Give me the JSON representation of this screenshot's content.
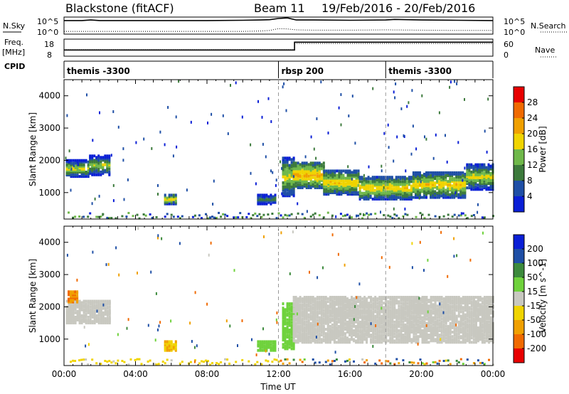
{
  "header": {
    "station": "Blackstone (fitACF)",
    "beam": "Beam 11",
    "daterange": "19/Feb/2016 - 20/Feb/2016"
  },
  "left_labels": {
    "nsky": "N.Sky",
    "freq": "Freq.",
    "mhz": "[MHz]",
    "cpid": "CPID"
  },
  "right_labels": {
    "nsearch": "N.Search",
    "nave": "Nave"
  },
  "small_ticks": {
    "noise_left_top": "10^5",
    "noise_left_bottom": "10^0",
    "noise_right_top": "10^5",
    "noise_right_bottom": "10^0",
    "freq_left_top": "18",
    "freq_left_bottom": "8",
    "nave_right_top": "60",
    "nave_right_bottom": "0"
  },
  "cpid_segments": [
    {
      "start_hour": 0,
      "label": "themis -3300"
    },
    {
      "start_hour": 12,
      "label": "rbsp 200"
    },
    {
      "start_hour": 18,
      "label": "themis -3300"
    }
  ],
  "colors": {
    "power": [
      "#0a1fd6",
      "#1f4fa6",
      "#3c7a3c",
      "#6fb84a",
      "#f0d400",
      "#f0a000",
      "#f06a00",
      "#e80000"
    ],
    "velocity": [
      "#e80000",
      "#f06a00",
      "#f0a000",
      "#f0d400",
      "#c8c8c0",
      "#6fd23c",
      "#3c8a3c",
      "#1f4fa6",
      "#0a1fd6"
    ],
    "ground_scatter": "#c8c8c0"
  },
  "chart_data": [
    {
      "type": "line",
      "title": "",
      "series": [
        {
          "name": "N.Sky",
          "x": [
            0,
            0.5,
            1,
            1.5,
            2,
            2.5,
            3,
            4,
            6,
            8,
            10,
            11,
            11.5,
            12,
            12.5,
            13,
            14,
            16,
            18,
            18.5,
            20,
            22,
            24
          ],
          "y_log10": [
            4.3,
            4.3,
            4.3,
            4.5,
            4.3,
            4.3,
            4.3,
            4.3,
            4.3,
            4.3,
            4.4,
            4.5,
            4.6,
            5.0,
            5.2,
            4.5,
            4.5,
            4.4,
            4.5,
            4.7,
            4.5,
            4.4,
            4.3
          ]
        },
        {
          "name": "N.Search",
          "x": [
            0,
            2,
            4,
            6,
            8,
            10,
            11,
            11.5,
            12,
            12.5,
            13,
            14,
            16,
            18,
            20,
            22,
            24
          ],
          "y_log10": [
            0.7,
            0.7,
            0.7,
            0.7,
            0.7,
            0.7,
            0.8,
            1.0,
            1.6,
            1.5,
            1.2,
            1.1,
            1.1,
            1.2,
            1.1,
            1.0,
            1.0
          ]
        }
      ],
      "xlim": [
        0,
        24
      ],
      "ylim_log10": [
        0,
        5
      ]
    },
    {
      "type": "line",
      "title": "",
      "series": [
        {
          "name": "Freq.",
          "x": [
            0,
            12.9,
            12.9,
            24
          ],
          "y": [
            11.5,
            11.5,
            16.5,
            16.5
          ]
        },
        {
          "name": "Nave",
          "x": [
            0,
            12.9,
            12.9,
            24
          ],
          "y": [
            22,
            22,
            46,
            46
          ]
        }
      ],
      "xlim": [
        0,
        24
      ]
    },
    {
      "type": "heatmap",
      "title": "",
      "ylabel": "Slant Range [km]",
      "colorbar_label": "Power [dB]",
      "colorbar_ticks": [
        "4",
        "8",
        "12",
        "16",
        "20",
        "24",
        "28"
      ],
      "xlim": [
        0,
        24
      ],
      "ylim": [
        180,
        4500
      ],
      "yticks": [
        1000,
        2000,
        3000,
        4000
      ],
      "bands": [
        {
          "t0": 0.1,
          "t1": 1.4,
          "r0": 1500,
          "r1": 2000,
          "level": 20
        },
        {
          "t0": 1.4,
          "t1": 2.6,
          "r0": 1550,
          "r1": 2150,
          "level": 18
        },
        {
          "t0": 5.6,
          "t1": 6.3,
          "r0": 650,
          "r1": 950,
          "level": 22
        },
        {
          "t0": 10.8,
          "t1": 11.8,
          "r0": 650,
          "r1": 950,
          "level": 14
        },
        {
          "t0": 12.2,
          "t1": 12.8,
          "r0": 900,
          "r1": 2100,
          "level": 20
        },
        {
          "t0": 12.8,
          "t1": 14.5,
          "r0": 1150,
          "r1": 1950,
          "level": 24
        },
        {
          "t0": 14.5,
          "t1": 16.5,
          "r0": 950,
          "r1": 1700,
          "level": 22
        },
        {
          "t0": 16.5,
          "t1": 19.5,
          "r0": 800,
          "r1": 1500,
          "level": 22
        },
        {
          "t0": 19.5,
          "t1": 22.5,
          "r0": 850,
          "r1": 1650,
          "level": 22
        },
        {
          "t0": 22.5,
          "t1": 24,
          "r0": 1100,
          "r1": 1900,
          "level": 20
        }
      ]
    },
    {
      "type": "heatmap",
      "title": "",
      "xlabel": "Time UT",
      "ylabel": "Slant Range [km]",
      "colorbar_label": "Velocity [m s^-1]",
      "colorbar_ticks": [
        "200",
        "100",
        "50",
        "15",
        "-15",
        "-50",
        "-100",
        "-200"
      ],
      "xlim": [
        0,
        24
      ],
      "ylim": [
        180,
        4500
      ],
      "xticks": [
        "00:00",
        "04:00",
        "08:00",
        "12:00",
        "16:00",
        "20:00",
        "00:00"
      ],
      "yticks": [
        1000,
        2000,
        3000,
        4000
      ],
      "bands": [
        {
          "t0": 0.1,
          "t1": 2.6,
          "r0": 1500,
          "r1": 2200,
          "kind": "ground"
        },
        {
          "t0": 0.2,
          "t1": 0.8,
          "r0": 2150,
          "r1": 2500,
          "kind": "velocity",
          "level": -100
        },
        {
          "t0": 5.6,
          "t1": 6.3,
          "r0": 650,
          "r1": 950,
          "kind": "velocity",
          "level": -50
        },
        {
          "t0": 10.8,
          "t1": 11.8,
          "r0": 650,
          "r1": 950,
          "kind": "velocity",
          "level": 30
        },
        {
          "t0": 12.2,
          "t1": 12.8,
          "r0": 700,
          "r1": 2100,
          "kind": "velocity",
          "level": 30
        },
        {
          "t0": 12.8,
          "t1": 24,
          "r0": 900,
          "r1": 2300,
          "kind": "ground"
        }
      ]
    }
  ]
}
